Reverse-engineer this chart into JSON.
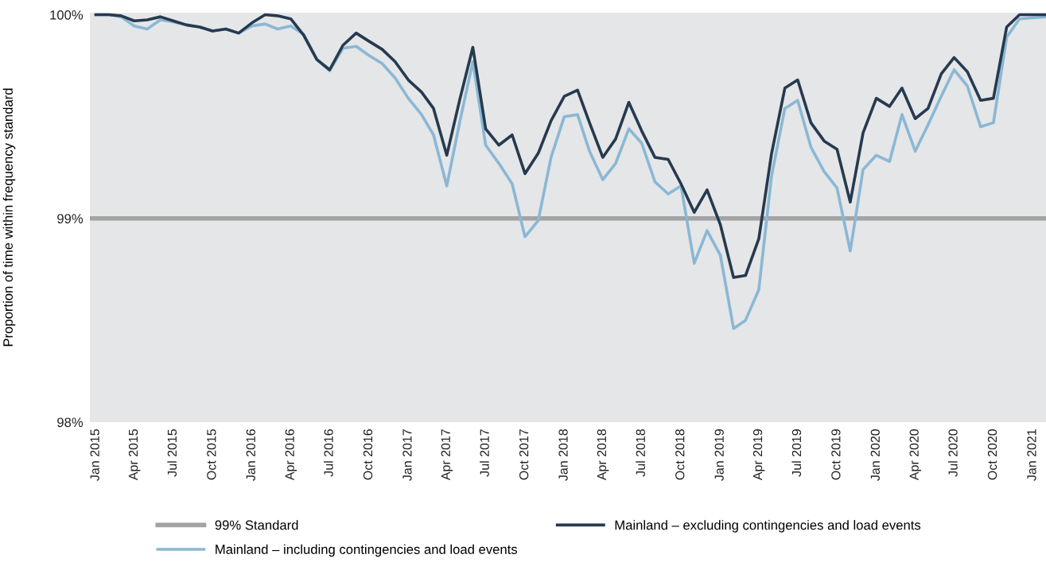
{
  "chart_data": {
    "type": "line",
    "ylabel": "Proportion of time within frequency standard",
    "x": [
      "2015-01",
      "2015-02",
      "2015-03",
      "2015-04",
      "2015-05",
      "2015-06",
      "2015-07",
      "2015-08",
      "2015-09",
      "2015-10",
      "2015-11",
      "2015-12",
      "2016-01",
      "2016-02",
      "2016-03",
      "2016-04",
      "2016-05",
      "2016-06",
      "2016-07",
      "2016-08",
      "2016-09",
      "2016-10",
      "2016-11",
      "2016-12",
      "2017-01",
      "2017-02",
      "2017-03",
      "2017-04",
      "2017-05",
      "2017-06",
      "2017-07",
      "2017-08",
      "2017-09",
      "2017-10",
      "2017-11",
      "2017-12",
      "2018-01",
      "2018-02",
      "2018-03",
      "2018-04",
      "2018-05",
      "2018-06",
      "2018-07",
      "2018-08",
      "2018-09",
      "2018-10",
      "2018-11",
      "2018-12",
      "2019-01",
      "2019-02",
      "2019-03",
      "2019-04",
      "2019-05",
      "2019-06",
      "2019-07",
      "2019-08",
      "2019-09",
      "2019-10",
      "2019-11",
      "2019-12",
      "2020-01",
      "2020-02",
      "2020-03",
      "2020-04",
      "2020-05",
      "2020-06",
      "2020-07",
      "2020-08",
      "2020-09",
      "2020-10",
      "2020-11",
      "2020-12",
      "2021-01",
      "2021-02"
    ],
    "series": [
      {
        "name": "Mainland – including contingencies and load events",
        "color": "#8ab8d4",
        "values": [
          100.0,
          100.0,
          99.99,
          99.945,
          99.93,
          99.975,
          99.965,
          99.95,
          99.94,
          99.92,
          99.93,
          99.91,
          99.945,
          99.955,
          99.93,
          99.945,
          99.905,
          99.78,
          99.725,
          99.835,
          99.845,
          99.8,
          99.76,
          99.69,
          99.59,
          99.51,
          99.41,
          99.16,
          99.47,
          99.77,
          99.36,
          99.27,
          99.17,
          98.91,
          98.99,
          99.3,
          99.5,
          99.51,
          99.33,
          99.19,
          99.27,
          99.44,
          99.37,
          99.18,
          99.12,
          99.16,
          98.78,
          98.94,
          98.82,
          98.46,
          98.5,
          98.65,
          99.21,
          99.54,
          99.58,
          99.35,
          99.23,
          99.15,
          98.84,
          99.24,
          99.31,
          99.28,
          99.51,
          99.33,
          99.46,
          99.6,
          99.73,
          99.65,
          99.45,
          99.47,
          99.89,
          99.98,
          99.985,
          99.99
        ]
      },
      {
        "name": "Mainland – excluding contingencies and load events",
        "color": "#263a4f",
        "values": [
          100.0,
          100.0,
          99.995,
          99.97,
          99.975,
          99.99,
          99.97,
          99.95,
          99.94,
          99.92,
          99.93,
          99.91,
          99.96,
          100.0,
          99.995,
          99.98,
          99.9,
          99.78,
          99.73,
          99.85,
          99.91,
          99.87,
          99.83,
          99.77,
          99.68,
          99.62,
          99.54,
          99.31,
          99.58,
          99.84,
          99.44,
          99.36,
          99.41,
          99.22,
          99.32,
          99.48,
          99.6,
          99.63,
          99.47,
          99.3,
          99.39,
          99.57,
          99.43,
          99.3,
          99.29,
          99.17,
          99.03,
          99.14,
          98.97,
          98.71,
          98.72,
          98.9,
          99.32,
          99.64,
          99.68,
          99.47,
          99.38,
          99.34,
          99.08,
          99.42,
          99.59,
          99.55,
          99.64,
          99.49,
          99.54,
          99.71,
          99.79,
          99.72,
          99.58,
          99.59,
          99.94,
          100.0,
          100.0,
          100.0
        ]
      }
    ],
    "ref_lines": [
      {
        "axis": "y",
        "value": 99,
        "label": "99% Standard",
        "color": "#a3a3a3"
      }
    ],
    "xlim": [
      "2014-12-18",
      "2021-02-01"
    ],
    "xticks": [
      {
        "value": "2015-01",
        "label": "Jan 2015"
      },
      {
        "value": "2015-04",
        "label": "Apr 2015"
      },
      {
        "value": "2015-07",
        "label": "Jul 2015"
      },
      {
        "value": "2015-10",
        "label": "Oct 2015"
      },
      {
        "value": "2016-01",
        "label": "Jan 2016"
      },
      {
        "value": "2016-04",
        "label": "Apr 2016"
      },
      {
        "value": "2016-07",
        "label": "Jul 2016"
      },
      {
        "value": "2016-10",
        "label": "Oct 2016"
      },
      {
        "value": "2017-01",
        "label": "Jan 2017"
      },
      {
        "value": "2017-04",
        "label": "Apr 2017"
      },
      {
        "value": "2017-07",
        "label": "Jul 2017"
      },
      {
        "value": "2017-10",
        "label": "Oct 2017"
      },
      {
        "value": "2018-01",
        "label": "Jan 2018"
      },
      {
        "value": "2018-04",
        "label": "Apr 2018"
      },
      {
        "value": "2018-07",
        "label": "Jul 2018"
      },
      {
        "value": "2018-10",
        "label": "Oct 2018"
      },
      {
        "value": "2019-01",
        "label": "Jan 2019"
      },
      {
        "value": "2019-04",
        "label": "Apr 2019"
      },
      {
        "value": "2019-07",
        "label": "Jul 2019"
      },
      {
        "value": "2019-10",
        "label": "Oct 2019"
      },
      {
        "value": "2020-01",
        "label": "Jan 2020"
      },
      {
        "value": "2020-04",
        "label": "Apr 2020"
      },
      {
        "value": "2020-07",
        "label": "Jul 2020"
      },
      {
        "value": "2020-10",
        "label": "Oct 2020"
      },
      {
        "value": "2021-01",
        "label": "Jan 2021"
      }
    ],
    "ylim": [
      98,
      100.01
    ],
    "yticks": [
      {
        "value": 98,
        "label": "98%"
      },
      {
        "value": 99,
        "label": "99%"
      },
      {
        "value": 100,
        "label": "100%"
      }
    ],
    "grid": false,
    "legend": "bottom",
    "marker": "none",
    "line_style": "solid"
  }
}
